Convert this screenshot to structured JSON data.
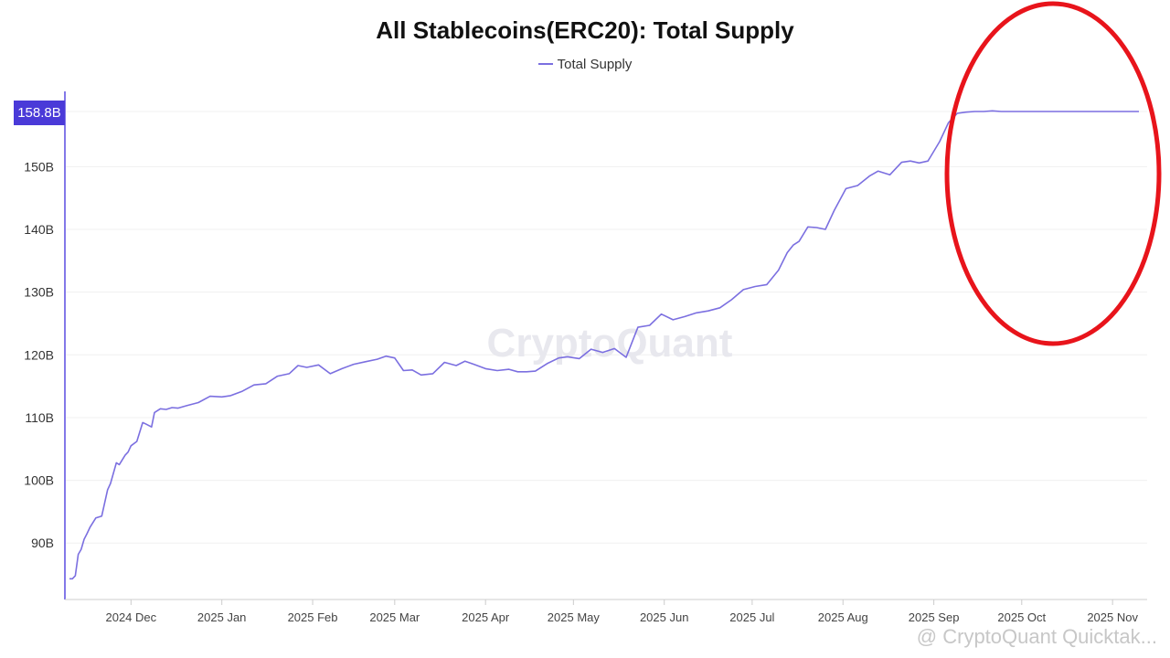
{
  "chart_data": {
    "type": "line",
    "title": "All Stablecoins(ERC20): Total Supply",
    "legend": "Total Supply",
    "legend_position": "top-center",
    "current_value_label": "158.8B",
    "x_ticks": [
      "2024 Dec",
      "2025 Jan",
      "2025 Feb",
      "2025 Mar",
      "2025 Apr",
      "2025 May",
      "2025 Jun",
      "2025 Jul",
      "2025 Aug",
      "2025 Sep",
      "2025 Oct",
      "2025 Nov"
    ],
    "y_ticks": [
      "90B",
      "100B",
      "110B",
      "120B",
      "130B",
      "140B",
      "150B"
    ],
    "y_tick_values": [
      90,
      100,
      110,
      120,
      130,
      140,
      150
    ],
    "ylim": [
      81,
      162
    ],
    "x_start": "2024-11-10",
    "x_end": "2025-11-10",
    "series": [
      {
        "name": "Total Supply",
        "color": "#7b6fe0",
        "x": [
          "2024-11-10",
          "2024-11-11",
          "2024-11-12",
          "2024-11-13",
          "2024-11-14",
          "2024-11-15",
          "2024-11-16",
          "2024-11-17",
          "2024-11-19",
          "2024-11-21",
          "2024-11-23",
          "2024-11-24",
          "2024-11-26",
          "2024-11-27",
          "2024-11-29",
          "2024-11-30",
          "2024-12-01",
          "2024-12-03",
          "2024-12-05",
          "2024-12-06",
          "2024-12-08",
          "2024-12-09",
          "2024-12-11",
          "2024-12-13",
          "2024-12-15",
          "2024-12-17",
          "2024-12-20",
          "2024-12-24",
          "2024-12-28",
          "2025-01-01",
          "2025-01-04",
          "2025-01-08",
          "2025-01-12",
          "2025-01-16",
          "2025-01-20",
          "2025-01-24",
          "2025-01-27",
          "2025-01-30",
          "2025-02-03",
          "2025-02-07",
          "2025-02-11",
          "2025-02-15",
          "2025-02-19",
          "2025-02-23",
          "2025-02-26",
          "2025-03-01",
          "2025-03-04",
          "2025-03-07",
          "2025-03-10",
          "2025-03-14",
          "2025-03-18",
          "2025-03-22",
          "2025-03-25",
          "2025-03-28",
          "2025-04-01",
          "2025-04-05",
          "2025-04-09",
          "2025-04-12",
          "2025-04-15",
          "2025-04-18",
          "2025-04-22",
          "2025-04-26",
          "2025-04-29",
          "2025-05-03",
          "2025-05-07",
          "2025-05-11",
          "2025-05-15",
          "2025-05-19",
          "2025-05-23",
          "2025-05-27",
          "2025-05-31",
          "2025-06-04",
          "2025-06-08",
          "2025-06-12",
          "2025-06-16",
          "2025-06-20",
          "2025-06-24",
          "2025-06-28",
          "2025-07-02",
          "2025-07-06",
          "2025-07-10",
          "2025-07-13",
          "2025-07-15",
          "2025-07-17",
          "2025-07-20",
          "2025-07-23",
          "2025-07-26",
          "2025-07-29",
          "2025-08-02",
          "2025-08-06",
          "2025-08-10",
          "2025-08-13",
          "2025-08-17",
          "2025-08-21",
          "2025-08-24",
          "2025-08-27",
          "2025-08-30",
          "2025-09-03",
          "2025-09-06",
          "2025-09-09",
          "2025-09-12",
          "2025-09-15",
          "2025-09-18",
          "2025-09-21",
          "2025-09-24",
          "2025-09-27",
          "2025-09-30",
          "2025-10-03",
          "2025-10-06",
          "2025-10-09",
          "2025-10-12",
          "2025-10-16",
          "2025-10-20",
          "2025-10-23",
          "2025-10-26",
          "2025-10-29",
          "2025-11-01",
          "2025-11-05",
          "2025-11-08",
          "2025-11-10"
        ],
        "values": [
          84.3,
          84.3,
          84.8,
          88.2,
          89.0,
          90.6,
          91.5,
          92.5,
          94.0,
          94.3,
          98.5,
          99.5,
          102.8,
          102.5,
          104.0,
          104.5,
          105.5,
          106.2,
          109.2,
          109.0,
          108.5,
          110.8,
          111.4,
          111.3,
          111.6,
          111.5,
          111.9,
          112.4,
          113.4,
          113.3,
          113.5,
          114.2,
          115.2,
          115.4,
          116.6,
          117.0,
          118.3,
          118.0,
          118.4,
          117.0,
          117.8,
          118.5,
          118.9,
          119.3,
          119.8,
          119.5,
          117.5,
          117.6,
          116.8,
          117.0,
          118.8,
          118.3,
          119.0,
          118.5,
          117.8,
          117.5,
          117.7,
          117.3,
          117.3,
          117.4,
          118.6,
          119.5,
          119.7,
          119.4,
          120.9,
          120.4,
          121.0,
          119.6,
          124.4,
          124.7,
          126.5,
          125.6,
          126.1,
          126.7,
          127.0,
          127.5,
          128.8,
          130.4,
          130.9,
          131.2,
          133.5,
          136.3,
          137.5,
          138.1,
          140.4,
          140.3,
          140.0,
          143.0,
          146.5,
          147.0,
          148.5,
          149.3,
          148.7,
          150.7,
          150.9,
          150.6,
          150.9,
          154.0,
          157.0,
          158.5,
          158.7,
          158.8,
          158.8,
          158.9,
          158.8,
          158.8,
          158.8,
          158.8,
          158.8,
          158.8,
          158.8,
          158.8,
          158.8,
          158.8,
          158.8,
          158.8,
          158.8,
          158.8,
          158.8,
          158.8
        ]
      }
    ]
  },
  "watermark": "CryptoQuant",
  "source_tag": "@ CryptoQuant Quicktak...",
  "annotation": {
    "shape": "ellipse",
    "color": "#e8141b"
  },
  "colors": {
    "axis": "#5a4ce0",
    "badge": "#4a3ad8",
    "line": "#7b6fe0",
    "grid": "#eeeeee"
  }
}
